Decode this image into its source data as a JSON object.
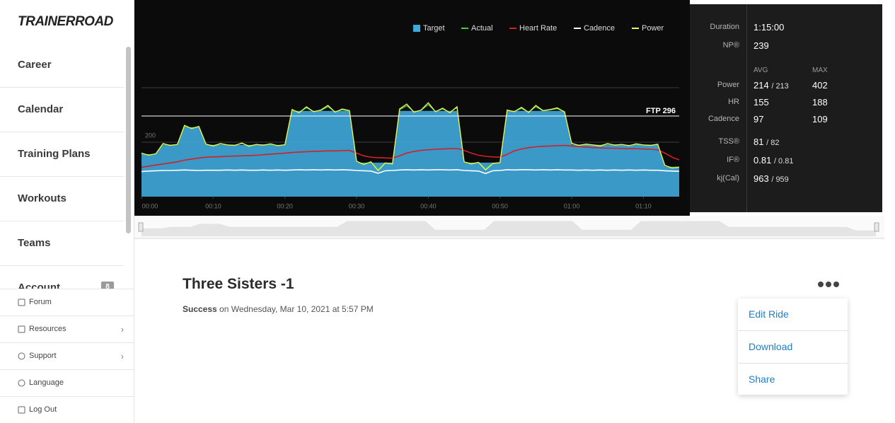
{
  "sidebar": {
    "logo": "TRAINERROAD",
    "nav": [
      "Career",
      "Calendar",
      "Training Plans",
      "Workouts",
      "Teams",
      "Account"
    ],
    "account_badge": "8",
    "links": [
      "Forum",
      "Resources",
      "Support",
      "Language",
      "Log Out"
    ]
  },
  "chart_data": {
    "type": "line",
    "x": [
      0,
      1,
      2,
      3,
      4,
      5,
      6,
      7,
      8,
      9,
      10,
      11,
      12,
      13,
      14,
      15,
      16,
      17,
      18,
      19,
      20,
      21,
      22,
      23,
      24,
      25,
      26,
      27,
      28,
      29,
      30,
      31,
      32,
      33,
      34,
      35,
      36,
      37,
      38,
      39,
      40,
      41,
      42,
      43,
      44,
      45,
      46,
      47,
      48,
      49,
      50,
      51,
      52,
      53,
      54,
      55,
      56,
      57,
      58,
      59,
      60,
      61,
      62,
      63,
      64,
      65,
      66,
      67,
      68,
      69,
      70,
      71,
      72,
      73,
      74,
      75
    ],
    "xlim": [
      0,
      75
    ],
    "xticks": [
      {
        "value": 0,
        "label": "00:00"
      },
      {
        "value": 10,
        "label": "00:10"
      },
      {
        "value": 20,
        "label": "00:20"
      },
      {
        "value": 30,
        "label": "00:30"
      },
      {
        "value": 40,
        "label": "00:40"
      },
      {
        "value": 50,
        "label": "00:50"
      },
      {
        "value": 60,
        "label": "01:00"
      },
      {
        "value": 70,
        "label": "01:10"
      }
    ],
    "ylim": [
      0,
      400
    ],
    "yticks": [
      200
    ],
    "ftp": {
      "value": 296,
      "label": "FTP 296"
    },
    "series": [
      {
        "name": "Target",
        "color": "#3fa9dc",
        "kind": "area",
        "values": [
          155,
          155,
          155,
          190,
          190,
          190,
          255,
          255,
          255,
          190,
          190,
          190,
          190,
          190,
          190,
          190,
          190,
          190,
          190,
          190,
          190,
          315,
          315,
          315,
          315,
          315,
          315,
          315,
          315,
          315,
          125,
          125,
          125,
          125,
          125,
          125,
          315,
          315,
          315,
          315,
          315,
          315,
          315,
          315,
          315,
          125,
          125,
          125,
          125,
          125,
          125,
          315,
          315,
          315,
          315,
          315,
          315,
          315,
          315,
          315,
          190,
          190,
          190,
          190,
          190,
          190,
          190,
          190,
          190,
          190,
          190,
          190,
          190,
          110,
          110,
          110
        ]
      },
      {
        "name": "Actual",
        "color": "#3ecf3e",
        "kind": "line",
        "values": [
          157,
          154,
          156,
          193,
          189,
          191,
          258,
          252,
          256,
          191,
          188,
          193,
          190,
          189,
          195,
          187,
          191,
          190,
          192,
          188,
          190,
          317,
          311,
          326,
          313,
          316,
          330,
          312,
          319,
          315,
          128,
          120,
          126,
          100,
          123,
          121,
          319,
          334,
          312,
          317,
          338,
          313,
          322,
          310,
          327,
          127,
          122,
          125,
          102,
          121,
          124,
          316,
          313,
          324,
          310,
          330,
          315,
          319,
          323,
          312,
          194,
          189,
          192,
          190,
          188,
          193,
          190,
          191,
          188,
          192,
          190,
          189,
          191,
          113,
          107,
          109
        ]
      },
      {
        "name": "Heart Rate",
        "color": "#d42020",
        "kind": "line",
        "values": [
          108,
          112,
          116,
          120,
          124,
          128,
          134,
          138,
          142,
          145,
          146,
          147,
          148,
          149,
          150,
          151,
          152,
          154,
          156,
          158,
          160,
          162,
          164,
          165,
          166,
          167,
          168,
          168,
          169,
          170,
          160,
          150,
          145,
          143,
          142,
          141,
          150,
          160,
          166,
          170,
          172,
          174,
          175,
          176,
          177,
          170,
          160,
          152,
          148,
          146,
          145,
          155,
          168,
          175,
          180,
          183,
          185,
          186,
          187,
          188,
          186,
          184,
          182,
          180,
          179,
          178,
          178,
          177,
          176,
          176,
          175,
          174,
          172,
          160,
          145,
          135
        ]
      },
      {
        "name": "Cadence",
        "color": "#ffffff",
        "kind": "line",
        "values": [
          92,
          94,
          95,
          96,
          96,
          97,
          98,
          97,
          96,
          97,
          97,
          97,
          98,
          97,
          98,
          97,
          97,
          98,
          97,
          98,
          97,
          98,
          99,
          98,
          99,
          98,
          99,
          98,
          99,
          98,
          96,
          95,
          94,
          86,
          95,
          96,
          98,
          99,
          98,
          99,
          98,
          99,
          99,
          98,
          99,
          96,
          95,
          94,
          85,
          95,
          96,
          99,
          98,
          99,
          99,
          98,
          99,
          98,
          99,
          98,
          98,
          97,
          98,
          97,
          98,
          97,
          98,
          97,
          98,
          97,
          98,
          97,
          97,
          95,
          94,
          93
        ]
      },
      {
        "name": "Power",
        "color": "#f2f25a",
        "kind": "line",
        "values": [
          160,
          152,
          158,
          195,
          188,
          192,
          262,
          250,
          258,
          193,
          186,
          195,
          190,
          188,
          197,
          185,
          192,
          189,
          194,
          187,
          191,
          320,
          308,
          330,
          312,
          318,
          335,
          310,
          322,
          316,
          130,
          118,
          128,
          95,
          124,
          120,
          322,
          340,
          310,
          318,
          345,
          312,
          325,
          308,
          330,
          128,
          120,
          126,
          98,
          122,
          125,
          318,
          312,
          328,
          309,
          335,
          316,
          320,
          326,
          311,
          196,
          188,
          193,
          190,
          186,
          195,
          189,
          192,
          187,
          194,
          190,
          188,
          193,
          115,
          105,
          108
        ]
      }
    ]
  },
  "stats": {
    "duration_label": "Duration",
    "duration": "1:15:00",
    "np_label": "NP®",
    "np": "239",
    "avg_header": "AVG",
    "max_header": "MAX",
    "rows": [
      {
        "label": "Power",
        "avg": "214",
        "avg_target": "/ 213",
        "max": "402"
      },
      {
        "label": "HR",
        "avg": "155",
        "max": "188"
      },
      {
        "label": "Cadence",
        "avg": "97",
        "max": "109"
      }
    ],
    "summary": [
      {
        "label": "TSS®",
        "value": "81",
        "target": "/ 82"
      },
      {
        "label": "IF®",
        "value": "0.81",
        "target": "/ 0.81"
      },
      {
        "label": "kj(Cal)",
        "value": "963",
        "target": "/ 959"
      }
    ]
  },
  "ride": {
    "title": "Three Sisters -1",
    "status": "Success",
    "date": "on Wednesday, Mar 10, 2021 at 5:57 PM"
  },
  "menu": [
    "Edit Ride",
    "Download",
    "Share"
  ]
}
